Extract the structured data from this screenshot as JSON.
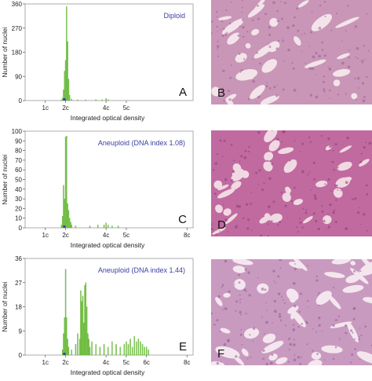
{
  "figure": {
    "colors": {
      "bars": "#7cc644",
      "bars_dark": "#3f9a2c",
      "blue": "#3b3fa0"
    }
  },
  "chart_data": [
    {
      "type": "bar",
      "title": "Diploid",
      "panel_letter": "A",
      "xlabel": "Integrated optical density",
      "ylabel": "Number of nuclei",
      "ylim": [
        0,
        360
      ],
      "yticks": [
        0,
        90,
        180,
        270,
        360
      ],
      "xticks": [
        "1c",
        "2c",
        "4c",
        "5c"
      ],
      "xtick_positions_c": [
        1,
        2,
        4,
        5
      ],
      "xlim_c": [
        0,
        8.3
      ],
      "x_unit": "c",
      "x": [
        1.8,
        1.85,
        1.9,
        1.95,
        2.0,
        2.05,
        2.1,
        2.15,
        2.2,
        2.3,
        2.6,
        3.0,
        3.5,
        3.8,
        4.0,
        4.1
      ],
      "values": [
        3,
        10,
        40,
        110,
        150,
        350,
        220,
        80,
        20,
        6,
        3,
        3,
        4,
        3,
        8,
        4
      ]
    },
    {
      "type": "bar",
      "title": "Aneuploid (DNA index 1.08)",
      "panel_letter": "C",
      "xlabel": "Integrated optical density",
      "ylabel": "Number of nuclei",
      "ylim": [
        0,
        100
      ],
      "yticks": [
        0,
        10,
        20,
        30,
        40,
        50,
        60,
        70,
        80,
        90,
        100
      ],
      "xticks": [
        "1c",
        "2c",
        "4c",
        "5c",
        "8c"
      ],
      "xtick_positions_c": [
        1,
        2,
        4,
        5,
        8
      ],
      "xlim_c": [
        0,
        8.3
      ],
      "x_unit": "c",
      "x": [
        1.8,
        1.85,
        1.9,
        1.95,
        2.0,
        2.05,
        2.1,
        2.15,
        2.2,
        2.25,
        2.3,
        2.5,
        3.2,
        3.6,
        3.9,
        4.0,
        4.1,
        4.3,
        4.6
      ],
      "values": [
        3,
        12,
        44,
        30,
        94,
        95,
        25,
        18,
        10,
        6,
        3,
        2,
        2,
        3,
        3,
        5,
        3,
        2,
        2
      ]
    },
    {
      "type": "bar",
      "title": "Aneuploid (DNA index 1.44)",
      "panel_letter": "E",
      "xlabel": "Integrated optical density",
      "ylabel": "Number of nuclei",
      "ylim": [
        0,
        36
      ],
      "yticks": [
        0,
        9,
        18,
        27,
        36
      ],
      "xticks": [
        "1c",
        "2c",
        "4c",
        "5c",
        "6c",
        "8c"
      ],
      "xtick_positions_c": [
        1,
        2,
        4,
        5,
        6,
        8
      ],
      "xlim_c": [
        0,
        8.3
      ],
      "x_unit": "c",
      "x": [
        1.85,
        1.9,
        1.95,
        2.0,
        2.05,
        2.1,
        2.15,
        2.3,
        2.5,
        2.6,
        2.7,
        2.75,
        2.8,
        2.85,
        2.9,
        2.95,
        3.0,
        3.05,
        3.1,
        3.15,
        3.2,
        3.3,
        3.5,
        3.7,
        3.9,
        4.1,
        4.3,
        4.5,
        4.7,
        4.9,
        5.0,
        5.1,
        5.2,
        5.3,
        5.4,
        5.5,
        5.6,
        5.7,
        5.8,
        5.9,
        6.0,
        6.1
      ],
      "values": [
        2,
        8,
        14,
        32,
        14,
        6,
        3,
        2,
        4,
        8,
        6,
        24,
        20,
        22,
        12,
        26,
        27,
        18,
        8,
        6,
        3,
        5,
        4,
        3,
        4,
        3,
        5,
        4,
        3,
        4,
        5,
        4,
        6,
        3,
        7,
        5,
        6,
        5,
        4,
        3,
        3,
        2
      ]
    }
  ],
  "micrographs": [
    {
      "letter": "B",
      "colors": {
        "bg": "#f3e4ea",
        "tissue": "#c996b7",
        "dark": "#9c5c8e"
      }
    },
    {
      "letter": "D",
      "colors": {
        "bg": "#f0d9e2",
        "tissue": "#c06aa0",
        "dark": "#8c3a78"
      }
    },
    {
      "letter": "F",
      "colors": {
        "bg": "#f4e6ee",
        "tissue": "#c99ac0",
        "dark": "#8e5a8f"
      }
    }
  ]
}
